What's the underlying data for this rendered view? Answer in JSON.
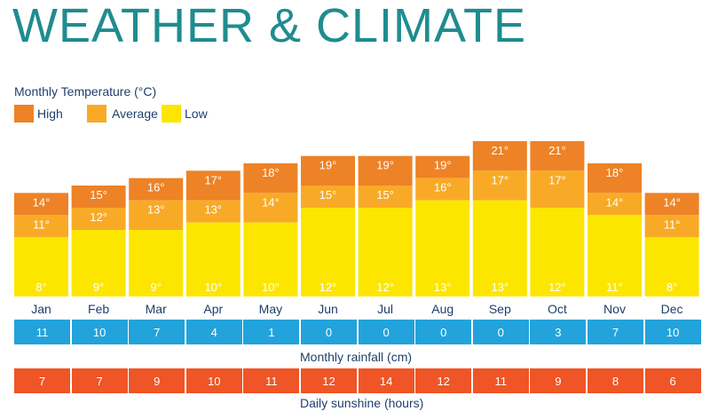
{
  "title": "WEATHER & CLIMATE",
  "chart_data": {
    "type": "bar",
    "title": "Monthly Temperature (°C)",
    "categories": [
      "Jan",
      "Feb",
      "Mar",
      "Apr",
      "May",
      "Jun",
      "Jul",
      "Aug",
      "Sep",
      "Oct",
      "Nov",
      "Dec"
    ],
    "series": [
      {
        "name": "High",
        "values": [
          14,
          15,
          16,
          17,
          18,
          19,
          19,
          19,
          21,
          21,
          18,
          14
        ]
      },
      {
        "name": "Average",
        "values": [
          11,
          12,
          13,
          13,
          14,
          15,
          15,
          16,
          17,
          17,
          14,
          11
        ]
      },
      {
        "name": "Low",
        "values": [
          8,
          9,
          9,
          10,
          10,
          12,
          12,
          13,
          13,
          12,
          11,
          8
        ]
      }
    ],
    "unit_suffix": "°",
    "ylim": [
      0,
      22
    ],
    "colors": {
      "High": "#ee8226",
      "Average": "#f8aa27",
      "Low": "#fce600"
    }
  },
  "legend": [
    {
      "label": "High",
      "color": "#ee8226"
    },
    {
      "label": "Average",
      "color": "#f8aa27"
    },
    {
      "label": "Low",
      "color": "#fce600"
    }
  ],
  "rainfall": {
    "title": "Monthly rainfall (cm)",
    "values": [
      "11",
      "10",
      "7",
      "4",
      "1",
      "0",
      "0",
      "0",
      "0",
      "3",
      "7",
      "10"
    ],
    "color": "#22a3db"
  },
  "sunshine": {
    "title": "Daily sunshine (hours)",
    "values": [
      "7",
      "7",
      "9",
      "10",
      "11",
      "12",
      "14",
      "12",
      "11",
      "9",
      "8",
      "6"
    ],
    "color": "#ef5526"
  }
}
